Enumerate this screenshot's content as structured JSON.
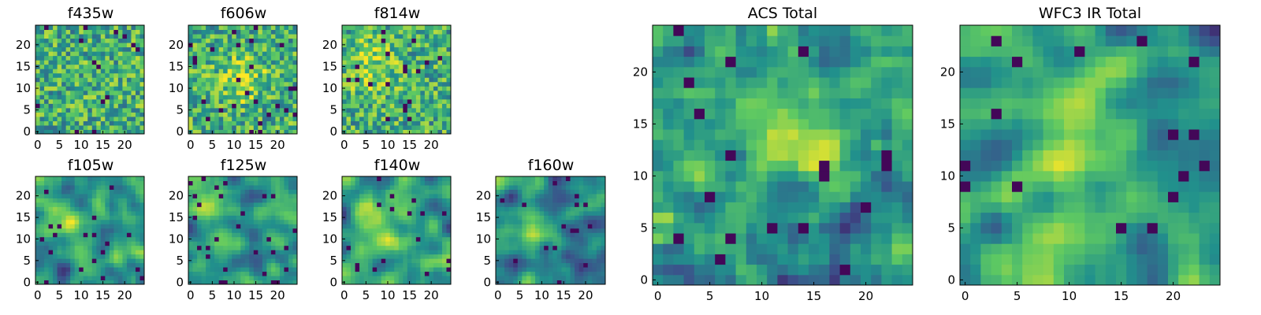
{
  "figure": {
    "background": "#ffffff",
    "colormap": [
      "#440154",
      "#3b528b",
      "#21918c",
      "#5ec962",
      "#fde725"
    ]
  },
  "chart_data": [
    {
      "id": "f435w",
      "type": "heatmap",
      "title": "f435w",
      "xlabel": "",
      "ylabel": "",
      "grid_size": 25,
      "xlim": [
        0,
        24
      ],
      "ylim": [
        0,
        24
      ],
      "xticks": [
        0,
        5,
        10,
        15,
        20
      ],
      "yticks": [
        0,
        5,
        10,
        15,
        20
      ],
      "texture": "noisy",
      "hotspot": null
    },
    {
      "id": "f606w",
      "type": "heatmap",
      "title": "f606w",
      "xlabel": "",
      "ylabel": "",
      "grid_size": 25,
      "xlim": [
        0,
        24
      ],
      "ylim": [
        0,
        24
      ],
      "xticks": [
        0,
        5,
        10,
        15,
        20
      ],
      "yticks": [
        0,
        5,
        10,
        15,
        20
      ],
      "texture": "noisy",
      "hotspot": [
        12,
        12
      ]
    },
    {
      "id": "f814w",
      "type": "heatmap",
      "title": "f814w",
      "xlabel": "",
      "ylabel": "",
      "grid_size": 25,
      "xlim": [
        0,
        24
      ],
      "ylim": [
        0,
        24
      ],
      "xticks": [
        0,
        5,
        10,
        15,
        20
      ],
      "yticks": [
        0,
        5,
        10,
        15,
        20
      ],
      "texture": "noisy",
      "hotspot": [
        6,
        15
      ]
    },
    {
      "id": "f105w",
      "type": "heatmap",
      "title": "f105w",
      "xlabel": "",
      "ylabel": "",
      "grid_size": 25,
      "xlim": [
        0,
        24
      ],
      "ylim": [
        0,
        24
      ],
      "xticks": [
        0,
        5,
        10,
        15,
        20
      ],
      "yticks": [
        0,
        5,
        10,
        15,
        20
      ],
      "texture": "smooth",
      "hotspot": [
        8,
        12
      ]
    },
    {
      "id": "f125w",
      "type": "heatmap",
      "title": "f125w",
      "xlabel": "",
      "ylabel": "",
      "grid_size": 25,
      "xlim": [
        0,
        24
      ],
      "ylim": [
        0,
        24
      ],
      "xticks": [
        0,
        5,
        10,
        15,
        20
      ],
      "yticks": [
        0,
        5,
        10,
        15,
        20
      ],
      "texture": "smooth",
      "hotspot": [
        6,
        12
      ]
    },
    {
      "id": "f140w",
      "type": "heatmap",
      "title": "f140w",
      "xlabel": "",
      "ylabel": "",
      "grid_size": 25,
      "xlim": [
        0,
        24
      ],
      "ylim": [
        0,
        24
      ],
      "xticks": [
        0,
        5,
        10,
        15,
        20
      ],
      "yticks": [
        0,
        5,
        10,
        15,
        20
      ],
      "texture": "smooth",
      "hotspot": [
        6,
        12
      ]
    },
    {
      "id": "f160w",
      "type": "heatmap",
      "title": "f160w",
      "xlabel": "",
      "ylabel": "",
      "grid_size": 25,
      "xlim": [
        0,
        24
      ],
      "ylim": [
        0,
        24
      ],
      "xticks": [
        0,
        5,
        10,
        15,
        20
      ],
      "yticks": [
        0,
        5,
        10,
        15,
        20
      ],
      "texture": "smooth",
      "hotspot": [
        7,
        13
      ]
    },
    {
      "id": "acs-total",
      "type": "heatmap",
      "title": "ACS Total",
      "xlabel": "",
      "ylabel": "",
      "grid_size": 25,
      "xlim": [
        0,
        24
      ],
      "ylim": [
        0,
        24
      ],
      "xticks": [
        0,
        5,
        10,
        15,
        20
      ],
      "yticks": [
        0,
        5,
        10,
        15,
        20
      ],
      "texture": "medium",
      "hotspot": [
        12,
        12
      ]
    },
    {
      "id": "wfc3-ir-total",
      "type": "heatmap",
      "title": "WFC3 IR Total",
      "xlabel": "",
      "ylabel": "",
      "grid_size": 25,
      "xlim": [
        0,
        24
      ],
      "ylim": [
        0,
        24
      ],
      "xticks": [
        0,
        5,
        10,
        15,
        20
      ],
      "yticks": [
        0,
        5,
        10,
        15,
        20
      ],
      "texture": "smooth",
      "hotspot": [
        8,
        13
      ]
    }
  ]
}
